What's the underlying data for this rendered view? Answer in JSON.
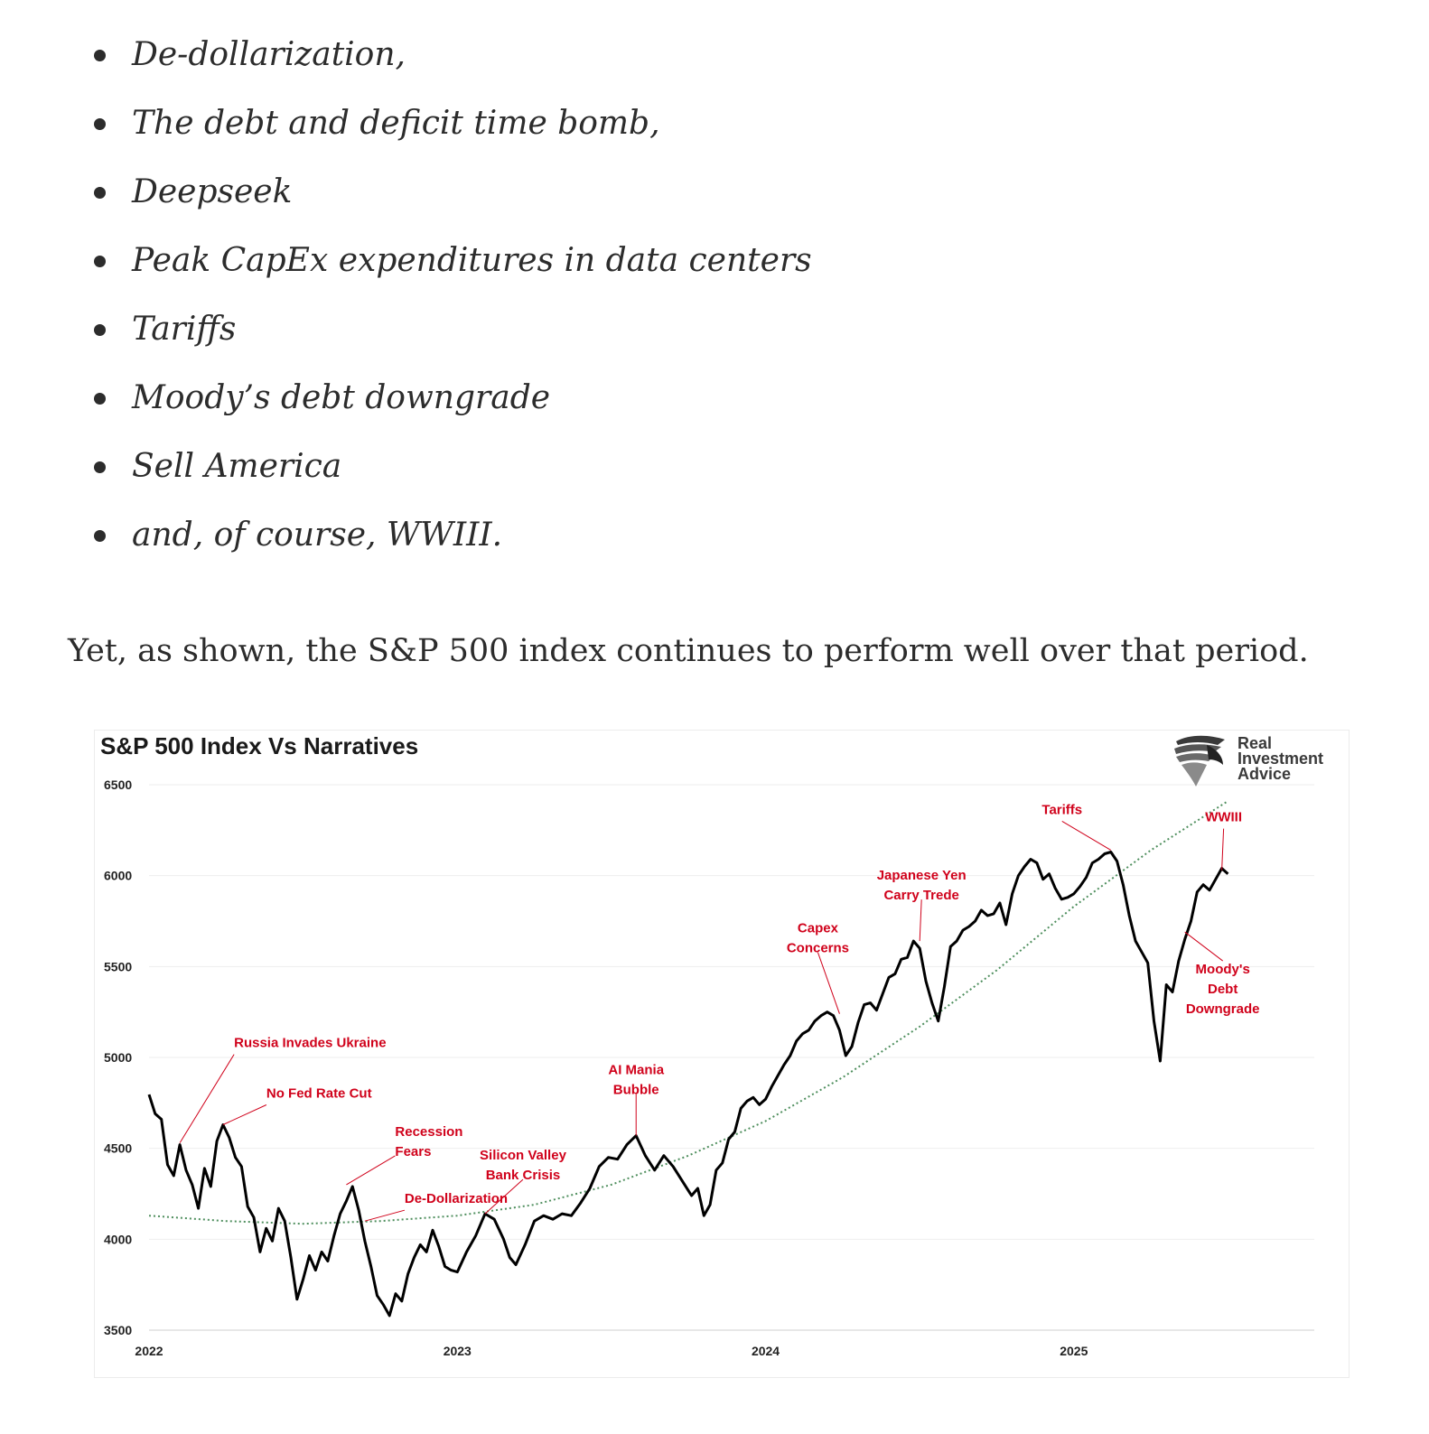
{
  "bullets": [
    "De-dollarization,",
    "The debt and deficit time bomb,",
    "Deepseek",
    "Peak CapEx expenditures in data centers",
    "Tariffs",
    "Moody’s debt downgrade",
    "Sell America",
    "and, of course, WWIII."
  ],
  "paragraph": "Yet, as shown, the S&P 500 index continues to perform well over that period.",
  "logo": {
    "line1": "Real",
    "line2": "Investment",
    "line3": "Advice",
    "icon": "eagle-head-icon"
  },
  "chart_data": {
    "type": "line",
    "title": "S&P 500 Index Vs Narratives",
    "xlabel": "",
    "ylabel": "",
    "ylim": [
      3500,
      6500
    ],
    "xlim": [
      2022.0,
      2025.78
    ],
    "yticks": [
      "6500",
      "6000",
      "5500",
      "5000",
      "4500",
      "4000",
      "3500"
    ],
    "xticks": [
      "2022",
      "2023",
      "2024",
      "2025"
    ],
    "grid": true,
    "legend": "none",
    "colors": {
      "index_line": "#000000",
      "trend": "#4f8f5e",
      "annotation": "#d0021b"
    },
    "series": [
      {
        "points": [
          [
            2022.0,
            4796
          ],
          [
            2022.02,
            4690
          ],
          [
            2022.04,
            4660
          ],
          [
            2022.06,
            4410
          ],
          [
            2022.08,
            4350
          ],
          [
            2022.1,
            4520
          ],
          [
            2022.12,
            4380
          ],
          [
            2022.14,
            4300
          ],
          [
            2022.16,
            4170
          ],
          [
            2022.18,
            4390
          ],
          [
            2022.2,
            4290
          ],
          [
            2022.22,
            4540
          ],
          [
            2022.24,
            4630
          ],
          [
            2022.26,
            4560
          ],
          [
            2022.28,
            4450
          ],
          [
            2022.3,
            4400
          ],
          [
            2022.32,
            4180
          ],
          [
            2022.34,
            4120
          ],
          [
            2022.36,
            3930
          ],
          [
            2022.38,
            4060
          ],
          [
            2022.4,
            3990
          ],
          [
            2022.42,
            4170
          ],
          [
            2022.44,
            4100
          ],
          [
            2022.46,
            3900
          ],
          [
            2022.48,
            3670
          ],
          [
            2022.5,
            3780
          ],
          [
            2022.52,
            3910
          ],
          [
            2022.54,
            3830
          ],
          [
            2022.56,
            3930
          ],
          [
            2022.58,
            3880
          ],
          [
            2022.6,
            4020
          ],
          [
            2022.62,
            4140
          ],
          [
            2022.64,
            4210
          ],
          [
            2022.66,
            4290
          ],
          [
            2022.68,
            4160
          ],
          [
            2022.7,
            3990
          ],
          [
            2022.72,
            3850
          ],
          [
            2022.74,
            3690
          ],
          [
            2022.76,
            3640
          ],
          [
            2022.78,
            3580
          ],
          [
            2022.8,
            3700
          ],
          [
            2022.82,
            3660
          ],
          [
            2022.84,
            3810
          ],
          [
            2022.86,
            3900
          ],
          [
            2022.88,
            3970
          ],
          [
            2022.9,
            3930
          ],
          [
            2022.92,
            4050
          ],
          [
            2022.94,
            3960
          ],
          [
            2022.96,
            3850
          ],
          [
            2022.98,
            3830
          ],
          [
            2023.0,
            3820
          ],
          [
            2023.03,
            3930
          ],
          [
            2023.06,
            4020
          ],
          [
            2023.09,
            4140
          ],
          [
            2023.12,
            4110
          ],
          [
            2023.15,
            4000
          ],
          [
            2023.17,
            3900
          ],
          [
            2023.19,
            3860
          ],
          [
            2023.22,
            3970
          ],
          [
            2023.25,
            4100
          ],
          [
            2023.28,
            4130
          ],
          [
            2023.31,
            4110
          ],
          [
            2023.34,
            4140
          ],
          [
            2023.37,
            4130
          ],
          [
            2023.4,
            4200
          ],
          [
            2023.43,
            4280
          ],
          [
            2023.46,
            4400
          ],
          [
            2023.49,
            4450
          ],
          [
            2023.52,
            4440
          ],
          [
            2023.55,
            4520
          ],
          [
            2023.58,
            4570
          ],
          [
            2023.61,
            4460
          ],
          [
            2023.64,
            4380
          ],
          [
            2023.67,
            4460
          ],
          [
            2023.7,
            4400
          ],
          [
            2023.73,
            4320
          ],
          [
            2023.76,
            4240
          ],
          [
            2023.78,
            4280
          ],
          [
            2023.8,
            4130
          ],
          [
            2023.82,
            4190
          ],
          [
            2023.84,
            4380
          ],
          [
            2023.86,
            4420
          ],
          [
            2023.88,
            4550
          ],
          [
            2023.9,
            4590
          ],
          [
            2023.92,
            4720
          ],
          [
            2023.94,
            4760
          ],
          [
            2023.96,
            4780
          ],
          [
            2023.98,
            4740
          ],
          [
            2024.0,
            4770
          ],
          [
            2024.02,
            4840
          ],
          [
            2024.04,
            4900
          ],
          [
            2024.06,
            4960
          ],
          [
            2024.08,
            5010
          ],
          [
            2024.1,
            5090
          ],
          [
            2024.12,
            5130
          ],
          [
            2024.14,
            5150
          ],
          [
            2024.16,
            5200
          ],
          [
            2024.18,
            5230
          ],
          [
            2024.2,
            5250
          ],
          [
            2024.22,
            5230
          ],
          [
            2024.24,
            5150
          ],
          [
            2024.26,
            5010
          ],
          [
            2024.28,
            5060
          ],
          [
            2024.3,
            5190
          ],
          [
            2024.32,
            5290
          ],
          [
            2024.34,
            5300
          ],
          [
            2024.36,
            5260
          ],
          [
            2024.38,
            5350
          ],
          [
            2024.4,
            5440
          ],
          [
            2024.42,
            5460
          ],
          [
            2024.44,
            5540
          ],
          [
            2024.46,
            5550
          ],
          [
            2024.48,
            5640
          ],
          [
            2024.5,
            5600
          ],
          [
            2024.52,
            5420
          ],
          [
            2024.54,
            5300
          ],
          [
            2024.56,
            5200
          ],
          [
            2024.58,
            5390
          ],
          [
            2024.6,
            5610
          ],
          [
            2024.62,
            5640
          ],
          [
            2024.64,
            5700
          ],
          [
            2024.66,
            5720
          ],
          [
            2024.68,
            5750
          ],
          [
            2024.7,
            5810
          ],
          [
            2024.72,
            5780
          ],
          [
            2024.74,
            5790
          ],
          [
            2024.76,
            5850
          ],
          [
            2024.78,
            5730
          ],
          [
            2024.8,
            5900
          ],
          [
            2024.82,
            6000
          ],
          [
            2024.84,
            6050
          ],
          [
            2024.86,
            6090
          ],
          [
            2024.88,
            6070
          ],
          [
            2024.9,
            5980
          ],
          [
            2024.92,
            6010
          ],
          [
            2024.94,
            5930
          ],
          [
            2024.96,
            5870
          ],
          [
            2024.98,
            5880
          ],
          [
            2025.0,
            5900
          ],
          [
            2025.02,
            5940
          ],
          [
            2025.04,
            5990
          ],
          [
            2025.06,
            6070
          ],
          [
            2025.08,
            6090
          ],
          [
            2025.1,
            6120
          ],
          [
            2025.12,
            6130
          ],
          [
            2025.14,
            6080
          ],
          [
            2025.16,
            5950
          ],
          [
            2025.18,
            5780
          ],
          [
            2025.2,
            5640
          ],
          [
            2025.22,
            5580
          ],
          [
            2025.24,
            5520
          ],
          [
            2025.26,
            5200
          ],
          [
            2025.28,
            4980
          ],
          [
            2025.3,
            5400
          ],
          [
            2025.32,
            5360
          ],
          [
            2025.34,
            5530
          ],
          [
            2025.36,
            5650
          ],
          [
            2025.38,
            5750
          ],
          [
            2025.4,
            5910
          ],
          [
            2025.42,
            5950
          ],
          [
            2025.44,
            5920
          ],
          [
            2025.46,
            5980
          ],
          [
            2025.48,
            6040
          ],
          [
            2025.5,
            6010
          ]
        ]
      }
    ],
    "trend": {
      "style": "dotted",
      "points": [
        [
          2022.0,
          4130
        ],
        [
          2022.25,
          4100
        ],
        [
          2022.5,
          4085
        ],
        [
          2022.75,
          4100
        ],
        [
          2023.0,
          4130
        ],
        [
          2023.25,
          4190
        ],
        [
          2023.5,
          4300
        ],
        [
          2023.75,
          4460
        ],
        [
          2024.0,
          4650
        ],
        [
          2024.25,
          4890
        ],
        [
          2024.5,
          5170
        ],
        [
          2024.75,
          5480
        ],
        [
          2025.0,
          5830
        ],
        [
          2025.25,
          6140
        ],
        [
          2025.5,
          6410
        ]
      ]
    },
    "annotations": [
      {
        "lines": [
          "Russia Invades Ukraine"
        ],
        "x": 2022.1,
        "y": 4530,
        "align": "left"
      },
      {
        "lines": [
          "No Fed Rate Cut"
        ],
        "x": 2022.24,
        "y": 4630,
        "align": "left"
      },
      {
        "lines": [
          "Recession",
          "Fears"
        ],
        "x": 2022.64,
        "y": 4300,
        "align": "left"
      },
      {
        "lines": [
          "De-Dollarization"
        ],
        "x": 2022.7,
        "y": 4100,
        "align": "left"
      },
      {
        "lines": [
          "Silicon Valley",
          "Bank Crisis"
        ],
        "x": 2023.09,
        "y": 4140,
        "align": "center"
      },
      {
        "lines": [
          "AI Mania",
          "Bubble"
        ],
        "x": 2023.58,
        "y": 4570,
        "align": "center"
      },
      {
        "lines": [
          "Capex",
          "Concerns"
        ],
        "x": 2024.24,
        "y": 5240,
        "align": "center"
      },
      {
        "lines": [
          "Japanese Yen",
          "Carry Trede"
        ],
        "x": 2024.5,
        "y": 5640,
        "align": "center"
      },
      {
        "lines": [
          "Tariffs"
        ],
        "x": 2025.12,
        "y": 6140,
        "align": "center"
      },
      {
        "lines": [
          "WWIII"
        ],
        "x": 2025.48,
        "y": 6030,
        "align": "center"
      },
      {
        "lines": [
          "Moody's",
          "Debt",
          "Downgrade"
        ],
        "x": 2025.36,
        "y": 5690,
        "align": "center"
      }
    ]
  }
}
